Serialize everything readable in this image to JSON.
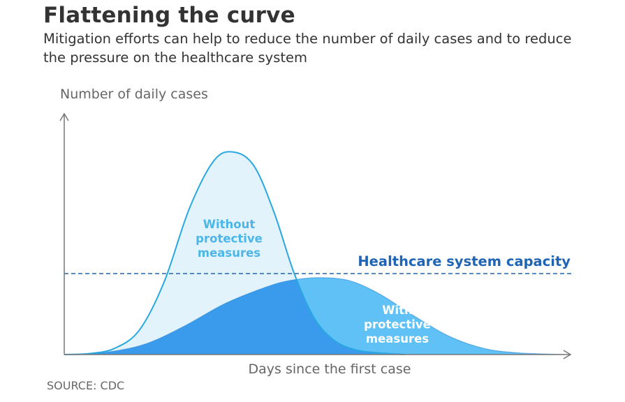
{
  "title": "Flattening the curve",
  "subtitle": "Mitigation efforts can help to reduce the number of daily cases and to reduce the pressure on the healthcare system",
  "source": "SOURCE: CDC",
  "colors": {
    "text": "#333333",
    "axis": "#777777",
    "without_stroke": "#29a8e0",
    "without_fill": "#e3f3fb",
    "with_fill": "#5fc1f5",
    "overlap_fill": "#3a9bec",
    "with_stroke": "#2d8ad9",
    "capacity": "#1f64b5",
    "without_label": "#4cb6e8",
    "with_label": "#ffffff"
  },
  "chart_data": {
    "type": "area",
    "title": "Flattening the curve",
    "subtitle": "Mitigation efforts can help to reduce the number of daily cases and to reduce the pressure on the healthcare system",
    "xlabel": "Days since the first case",
    "ylabel": "Number of daily cases",
    "x_ticks": [],
    "y_ticks": [],
    "grid": false,
    "series": [
      {
        "name": "Without protective measures",
        "label_lines": [
          "Without",
          "protective",
          "measures"
        ],
        "peak_x": 0.34,
        "peak_y": 1.0,
        "points": [
          [
            0,
            0
          ],
          [
            0.05,
            0.005
          ],
          [
            0.1,
            0.03
          ],
          [
            0.15,
            0.12
          ],
          [
            0.2,
            0.36
          ],
          [
            0.25,
            0.72
          ],
          [
            0.3,
            0.96
          ],
          [
            0.34,
            1.0
          ],
          [
            0.38,
            0.93
          ],
          [
            0.42,
            0.7
          ],
          [
            0.46,
            0.4
          ],
          [
            0.5,
            0.18
          ],
          [
            0.54,
            0.07
          ],
          [
            0.58,
            0.025
          ],
          [
            0.62,
            0.01
          ],
          [
            0.68,
            0.0
          ]
        ]
      },
      {
        "name": "With protective measures",
        "label_lines": [
          "With",
          "protective",
          "measures"
        ],
        "peak_x": 0.51,
        "peak_y": 0.38,
        "points": [
          [
            0,
            0
          ],
          [
            0.08,
            0.01
          ],
          [
            0.16,
            0.05
          ],
          [
            0.24,
            0.14
          ],
          [
            0.32,
            0.25
          ],
          [
            0.4,
            0.33
          ],
          [
            0.45,
            0.365
          ],
          [
            0.51,
            0.38
          ],
          [
            0.57,
            0.365
          ],
          [
            0.63,
            0.3
          ],
          [
            0.7,
            0.19
          ],
          [
            0.77,
            0.09
          ],
          [
            0.84,
            0.03
          ],
          [
            0.91,
            0.008
          ],
          [
            1.0,
            0.0
          ]
        ]
      }
    ],
    "threshold": {
      "name": "Healthcare system capacity",
      "y": 0.4,
      "style": "dashed"
    },
    "xlim": [
      0,
      1
    ],
    "ylim": [
      0,
      1.1
    ]
  }
}
